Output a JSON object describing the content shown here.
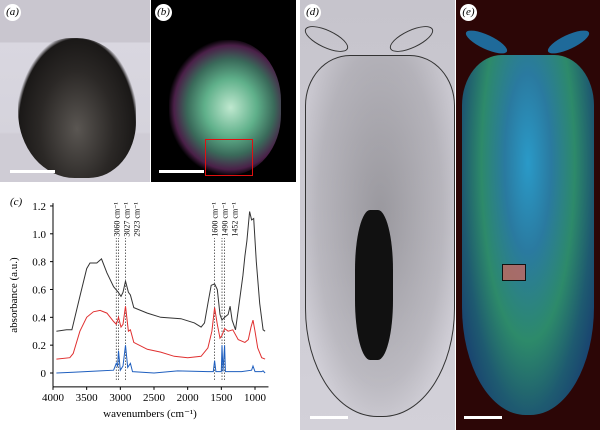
{
  "panels": {
    "a": "(a)",
    "b": "(b)",
    "c": "(c)",
    "d": "(d)",
    "e": "(e)"
  },
  "colors": {
    "panel_e_background": "#2c0606",
    "roi_b": "#e01010",
    "roi_e": "#111111"
  },
  "chart_data": {
    "type": "line",
    "xlabel": "wavenumbers (cm⁻¹)",
    "ylabel": "absorbance (a.u.)",
    "xlim": [
      4000,
      800
    ],
    "ylim": [
      -0.1,
      1.2
    ],
    "x_reversed": true,
    "xticks": [
      4000,
      3500,
      3000,
      2500,
      2000,
      1500,
      1000
    ],
    "yticks": [
      0,
      0.2,
      0.4,
      0.6,
      0.8,
      1.0,
      1.2
    ],
    "ytick_labels": [
      "0",
      "0.2",
      "0.4",
      "0.6",
      "0.8",
      "1.0",
      "1.2"
    ],
    "grid": false,
    "annotations": [
      {
        "x": 3060,
        "label": "3060 cm⁻¹"
      },
      {
        "x": 3027,
        "label": "3027 cm⁻¹"
      },
      {
        "x": 2923,
        "label": "2923 cm⁻¹"
      },
      {
        "x": 1600,
        "label": "1600 cm⁻¹"
      },
      {
        "x": 1490,
        "label": "1490 cm⁻¹"
      },
      {
        "x": 1452,
        "label": "1452 cm⁻¹"
      }
    ],
    "series": [
      {
        "color": "#333333",
        "points": [
          [
            3950,
            0.3
          ],
          [
            3800,
            0.31
          ],
          [
            3720,
            0.31
          ],
          [
            3600,
            0.55
          ],
          [
            3500,
            0.75
          ],
          [
            3450,
            0.79
          ],
          [
            3350,
            0.79
          ],
          [
            3280,
            0.82
          ],
          [
            3200,
            0.72
          ],
          [
            3100,
            0.62
          ],
          [
            3030,
            0.58
          ],
          [
            2990,
            0.55
          ],
          [
            2960,
            0.58
          ],
          [
            2923,
            0.66
          ],
          [
            2880,
            0.58
          ],
          [
            2850,
            0.56
          ],
          [
            2800,
            0.47
          ],
          [
            2600,
            0.43
          ],
          [
            2400,
            0.4
          ],
          [
            2100,
            0.39
          ],
          [
            1900,
            0.36
          ],
          [
            1800,
            0.33
          ],
          [
            1750,
            0.36
          ],
          [
            1700,
            0.5
          ],
          [
            1650,
            0.63
          ],
          [
            1600,
            0.64
          ],
          [
            1560,
            0.6
          ],
          [
            1520,
            0.42
          ],
          [
            1490,
            0.38
          ],
          [
            1452,
            0.4
          ],
          [
            1400,
            0.42
          ],
          [
            1370,
            0.48
          ],
          [
            1340,
            0.38
          ],
          [
            1290,
            0.31
          ],
          [
            1250,
            0.45
          ],
          [
            1180,
            0.7
          ],
          [
            1150,
            0.84
          ],
          [
            1120,
            0.95
          ],
          [
            1080,
            1.16
          ],
          [
            1050,
            1.1
          ],
          [
            1020,
            1.11
          ],
          [
            980,
            0.8
          ],
          [
            930,
            0.5
          ],
          [
            880,
            0.31
          ],
          [
            850,
            0.3
          ]
        ]
      },
      {
        "color": "#e03030",
        "points": [
          [
            3950,
            0.1
          ],
          [
            3750,
            0.11
          ],
          [
            3700,
            0.14
          ],
          [
            3600,
            0.3
          ],
          [
            3500,
            0.4
          ],
          [
            3400,
            0.44
          ],
          [
            3300,
            0.45
          ],
          [
            3200,
            0.43
          ],
          [
            3100,
            0.37
          ],
          [
            3060,
            0.35
          ],
          [
            3027,
            0.4
          ],
          [
            2990,
            0.33
          ],
          [
            2960,
            0.35
          ],
          [
            2923,
            0.48
          ],
          [
            2880,
            0.3
          ],
          [
            2850,
            0.31
          ],
          [
            2800,
            0.22
          ],
          [
            2600,
            0.17
          ],
          [
            2400,
            0.15
          ],
          [
            2200,
            0.12
          ],
          [
            2000,
            0.11
          ],
          [
            1800,
            0.12
          ],
          [
            1700,
            0.18
          ],
          [
            1640,
            0.3
          ],
          [
            1600,
            0.47
          ],
          [
            1560,
            0.35
          ],
          [
            1520,
            0.25
          ],
          [
            1490,
            0.27
          ],
          [
            1452,
            0.32
          ],
          [
            1400,
            0.3
          ],
          [
            1330,
            0.31
          ],
          [
            1250,
            0.24
          ],
          [
            1150,
            0.22
          ],
          [
            1100,
            0.24
          ],
          [
            1060,
            0.33
          ],
          [
            1030,
            0.38
          ],
          [
            1000,
            0.3
          ],
          [
            960,
            0.18
          ],
          [
            900,
            0.11
          ],
          [
            850,
            0.1
          ]
        ]
      },
      {
        "color": "#1f5fbf",
        "points": [
          [
            3950,
            0.0
          ],
          [
            3700,
            0.005
          ],
          [
            3300,
            0.015
          ],
          [
            3100,
            0.02
          ],
          [
            3060,
            0.07
          ],
          [
            3040,
            0.05
          ],
          [
            3027,
            0.16
          ],
          [
            3000,
            0.02
          ],
          [
            2960,
            0.05
          ],
          [
            2923,
            0.2
          ],
          [
            2890,
            0.04
          ],
          [
            2850,
            0.07
          ],
          [
            2820,
            0.01
          ],
          [
            2500,
            0.0
          ],
          [
            2150,
            0.015
          ],
          [
            1700,
            0.01
          ],
          [
            1620,
            0.01
          ],
          [
            1600,
            0.09
          ],
          [
            1580,
            0.01
          ],
          [
            1500,
            0.01
          ],
          [
            1490,
            0.2
          ],
          [
            1475,
            0.01
          ],
          [
            1452,
            0.2
          ],
          [
            1440,
            0.01
          ],
          [
            1350,
            0.01
          ],
          [
            1200,
            0.01
          ],
          [
            1050,
            0.02
          ],
          [
            1030,
            0.05
          ],
          [
            1000,
            0.01
          ],
          [
            900,
            0.01
          ],
          [
            880,
            0.015
          ],
          [
            850,
            0.0
          ]
        ]
      }
    ]
  }
}
